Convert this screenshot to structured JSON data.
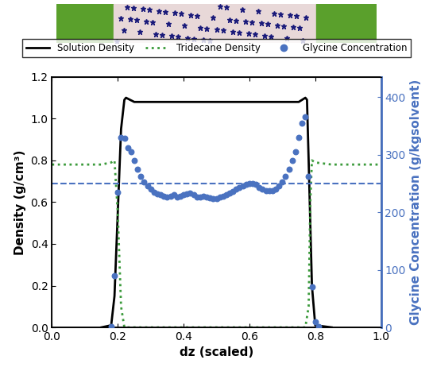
{
  "chart_data": {
    "type": "line",
    "x_label": "dz (scaled)",
    "y_label": "Density (g/cm³)",
    "y2_label": "Glycine Concentration (g/kgsolvent)",
    "xlim": [
      0,
      1
    ],
    "xticks": [
      {
        "value": 0,
        "label": "0.0"
      },
      0.2,
      0.4,
      0.6,
      0.8,
      {
        "value": 1,
        "label": "1.0"
      }
    ],
    "ylim": [
      0,
      1.2
    ],
    "yticks": [
      {
        "value": 0,
        "label": "0.0"
      },
      0.2,
      0.4,
      0.6,
      0.8,
      {
        "value": 1,
        "label": "1.0"
      },
      1.2
    ],
    "y2lim": [
      0,
      435
    ],
    "y2ticks": [
      0,
      100,
      200,
      300,
      400
    ],
    "legend": "upper center",
    "reference_line": 250,
    "series": [
      {
        "name": "Solution Density",
        "type": "line",
        "color": "#000000",
        "line_style": "solid",
        "x": [
          0.15,
          0.18,
          0.19,
          0.2,
          0.21,
          0.22,
          0.225,
          0.25,
          0.3,
          0.4,
          0.5,
          0.6,
          0.7,
          0.75,
          0.77,
          0.775,
          0.78,
          0.79,
          0.8,
          0.85
        ],
        "values": [
          0,
          0.01,
          0.15,
          0.55,
          0.95,
          1.09,
          1.1,
          1.08,
          1.08,
          1.08,
          1.08,
          1.08,
          1.08,
          1.08,
          1.1,
          1.09,
          0.8,
          0.2,
          0.01,
          0
        ]
      },
      {
        "name": "Tridecane Density",
        "type": "line",
        "color": "#3a9a3a",
        "line_style": "dotted",
        "x": [
          0,
          0.05,
          0.1,
          0.15,
          0.18,
          0.19,
          0.2,
          0.21,
          0.22,
          0.25,
          0.75,
          0.77,
          0.78,
          0.785,
          0.79,
          0.8,
          0.85,
          0.9,
          1.0
        ],
        "values": [
          0.78,
          0.78,
          0.78,
          0.78,
          0.79,
          0.8,
          0.55,
          0.1,
          0,
          0,
          0,
          0,
          0.1,
          0.6,
          0.8,
          0.79,
          0.78,
          0.78,
          0.78
        ]
      },
      {
        "name": "Glycine Concentration",
        "type": "scatter",
        "color": "#4a72c0",
        "marker": "circle",
        "axis": "y2",
        "x": [
          0.18,
          0.19,
          0.2,
          0.21,
          0.22,
          0.23,
          0.24,
          0.25,
          0.26,
          0.27,
          0.28,
          0.29,
          0.3,
          0.31,
          0.32,
          0.33,
          0.34,
          0.35,
          0.36,
          0.37,
          0.38,
          0.39,
          0.4,
          0.41,
          0.42,
          0.43,
          0.44,
          0.45,
          0.46,
          0.47,
          0.48,
          0.49,
          0.5,
          0.51,
          0.52,
          0.53,
          0.54,
          0.55,
          0.56,
          0.57,
          0.58,
          0.59,
          0.6,
          0.61,
          0.62,
          0.63,
          0.64,
          0.65,
          0.66,
          0.67,
          0.68,
          0.69,
          0.7,
          0.71,
          0.72,
          0.73,
          0.74,
          0.75,
          0.76,
          0.77,
          0.78,
          0.79,
          0.8,
          0.81
        ],
        "values": [
          2,
          90,
          235,
          330,
          328,
          312,
          305,
          290,
          275,
          262,
          252,
          245,
          240,
          235,
          232,
          230,
          228,
          226,
          228,
          230,
          227,
          228,
          230,
          232,
          233,
          230,
          227,
          226,
          228,
          226,
          225,
          224,
          224,
          226,
          228,
          230,
          233,
          236,
          240,
          243,
          246,
          248,
          250,
          250,
          248,
          243,
          240,
          238,
          237,
          238,
          240,
          245,
          252,
          262,
          275,
          290,
          305,
          330,
          355,
          365,
          262,
          70,
          10,
          2
        ]
      }
    ]
  }
}
